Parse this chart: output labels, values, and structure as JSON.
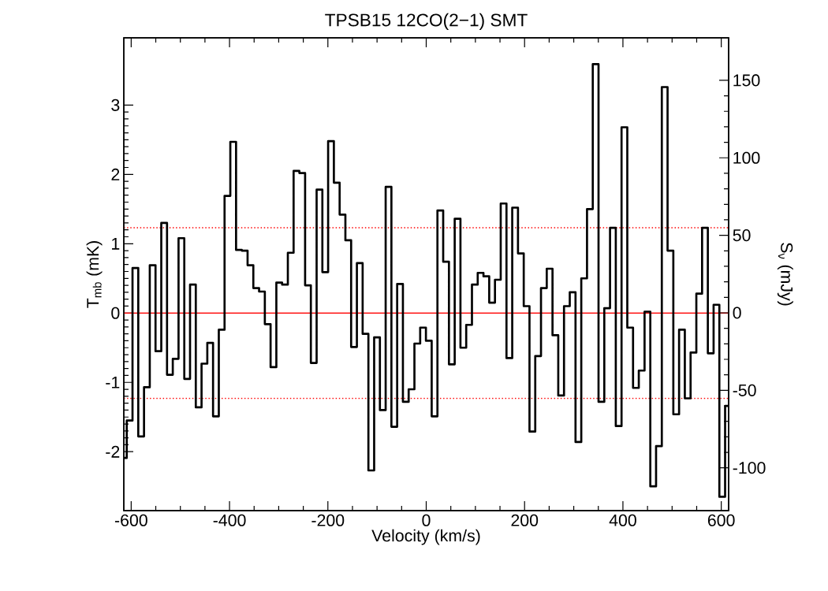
{
  "chart_data": {
    "type": "histogram",
    "title": "TPSB15 12CO(2−1) SMT",
    "xlabel": "Velocity (km/s)",
    "ylabel": "T$_{mb}$ (mK)",
    "y2label": "S$_{ν}$ (mJy)",
    "color": "#000000",
    "bins": [
      -615,
      -609.0,
      -597.3,
      -585.6,
      -573.9,
      -562.2,
      -550.5,
      -538.8,
      -527.1,
      -515.4,
      -503.7,
      -492.0,
      -480.3,
      -468.6,
      -456.9,
      -445.2,
      -433.5,
      -421.8,
      -410.1,
      -398.4,
      -386.7,
      -375.0,
      -363.3,
      -351.6,
      -339.9,
      -328.2,
      -316.5,
      -304.8,
      -293.1,
      -281.4,
      -269.7,
      -258.0,
      -246.3,
      -234.6,
      -222.9,
      -211.2,
      -199.5,
      -187.8,
      -176.1,
      -164.4,
      -152.7,
      -141.0,
      -129.3,
      -117.6,
      -105.9,
      -94.2,
      -82.5,
      -70.8,
      -59.1,
      -47.4,
      -35.7,
      -24.0,
      -12.3,
      -0.6,
      11.1,
      22.8,
      34.5,
      46.2,
      57.9,
      69.6,
      81.3,
      93.0,
      104.7,
      116.4,
      128.1,
      139.8,
      151.5,
      163.2,
      174.9,
      186.6,
      198.3,
      210.0,
      221.7,
      233.4,
      245.1,
      256.8,
      268.5,
      280.2,
      291.9,
      303.6,
      315.3,
      327.0,
      338.7,
      350.4,
      362.1,
      373.8,
      385.5,
      397.2,
      408.9,
      420.6,
      432.3,
      444.0,
      455.7,
      467.4,
      479.1,
      490.8,
      502.5,
      514.2,
      525.9,
      537.6,
      549.3,
      561.0,
      572.7,
      584.4,
      596.1,
      607.8,
      615
    ],
    "values": [
      -2.09,
      -1.55,
      0.65,
      -1.78,
      -1.07,
      0.69,
      -0.55,
      1.3,
      -0.89,
      -0.66,
      1.08,
      -0.95,
      0.41,
      -1.36,
      -0.73,
      -0.43,
      -1.49,
      -0.24,
      1.69,
      2.47,
      0.91,
      0.9,
      0.69,
      0.36,
      0.31,
      -0.16,
      -0.78,
      0.44,
      0.41,
      0.87,
      2.05,
      2.02,
      0.4,
      -0.72,
      1.78,
      0.59,
      2.48,
      1.88,
      1.42,
      1.05,
      -0.49,
      0.72,
      -0.3,
      -2.27,
      -0.35,
      -1.4,
      1.82,
      -1.64,
      0.42,
      -1.28,
      -1.1,
      -0.44,
      -0.21,
      -0.4,
      -1.49,
      1.48,
      0.74,
      -0.74,
      1.36,
      -0.5,
      -0.17,
      0.41,
      0.58,
      0.53,
      0.15,
      0.48,
      1.58,
      -0.65,
      1.52,
      0.86,
      0.1,
      -1.71,
      -0.62,
      0.36,
      0.64,
      -0.32,
      -1.19,
      0.1,
      0.3,
      -1.86,
      0.5,
      1.5,
      3.59,
      -1.28,
      0.07,
      1.23,
      -1.63,
      2.68,
      -0.21,
      -1.08,
      -0.83,
      0.02,
      -2.5,
      -1.92,
      3.26,
      0.9,
      -1.46,
      -0.24,
      -1.23,
      -0.57,
      0.28,
      1.23,
      -0.58,
      0.12,
      -2.65,
      -1.34
    ],
    "xlim": [
      -615,
      615
    ],
    "xticks": [
      -600,
      -400,
      -200,
      0,
      200,
      400,
      600
    ],
    "ylim": [
      -2.85,
      3.97
    ],
    "yticks": [
      -2,
      -1,
      0,
      1,
      2,
      3
    ],
    "y2lim": [
      -127.6,
      177.4
    ],
    "y2ticks": [
      -100,
      -50,
      0,
      50,
      100,
      150
    ],
    "ref_lines": [
      {
        "axis": "y",
        "value": 0,
        "color": "#ff0000",
        "line_style": "solid"
      },
      {
        "axis": "y",
        "value": 1.23,
        "color": "#ff0000",
        "line_style": "dotted"
      },
      {
        "axis": "y",
        "value": -1.23,
        "color": "#ff0000",
        "line_style": "dotted"
      }
    ]
  }
}
